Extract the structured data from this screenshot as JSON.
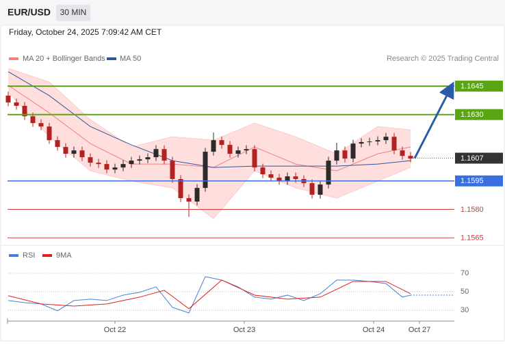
{
  "header": {
    "symbol": "EUR/USD",
    "interval": "30 MIN",
    "timestamp": "Friday, October 24, 2025 7:09:42 AM CET"
  },
  "time_axis": {
    "xlim": [
      0,
      54.33
    ],
    "xticks": [
      {
        "value": 13,
        "label": "Oct 22"
      },
      {
        "value": 28.75,
        "label": "Oct 23"
      },
      {
        "value": 44.5,
        "label": "Oct 24"
      },
      {
        "value": 50.08,
        "label": "Oct 27"
      }
    ]
  },
  "chart_data": [
    {
      "type": "candlestick",
      "credit": "Research © 2025 Trading Central",
      "ylim": [
        1.15625,
        1.1658
      ],
      "up_color": "#2b2b2b",
      "down_color": "#b22222",
      "candles": {
        "open": [
          1.164,
          1.16364,
          1.16346,
          1.16291,
          1.16255,
          1.16237,
          1.16165,
          1.16129,
          1.16093,
          1.16111,
          1.16075,
          1.16046,
          1.16039,
          1.1601,
          1.16021,
          1.16039,
          1.16057,
          1.16064,
          1.16075,
          1.16118,
          1.16057,
          1.1596,
          1.15859,
          1.15841,
          1.15913,
          1.16104,
          1.16165,
          1.1614,
          1.16093,
          1.16111,
          1.16118,
          1.16021,
          1.15985,
          1.15967,
          1.15949,
          1.15974,
          1.1596,
          1.15938,
          1.15877,
          1.15931,
          1.16057,
          1.16111,
          1.16068,
          1.16147,
          1.16155,
          1.16158,
          1.16165,
          1.16183,
          1.16111,
          1.16082
        ],
        "high": [
          1.1642,
          1.16384,
          1.16366,
          1.16311,
          1.16275,
          1.16257,
          1.16185,
          1.16149,
          1.16131,
          1.16131,
          1.16095,
          1.16066,
          1.16059,
          1.16041,
          1.16059,
          1.16077,
          1.16084,
          1.16095,
          1.16138,
          1.16138,
          1.16077,
          1.1598,
          1.15879,
          1.15933,
          1.16124,
          1.16205,
          1.16185,
          1.1616,
          1.16131,
          1.16138,
          1.16138,
          1.16041,
          1.16005,
          1.15987,
          1.15994,
          1.15994,
          1.1598,
          1.15958,
          1.15951,
          1.16077,
          1.16151,
          1.16131,
          1.16167,
          1.16175,
          1.16178,
          1.16185,
          1.16203,
          1.16203,
          1.16131,
          1.16102
        ],
        "low": [
          1.16344,
          1.16326,
          1.16271,
          1.16235,
          1.16217,
          1.16145,
          1.16109,
          1.16073,
          1.16073,
          1.16055,
          1.16026,
          1.16019,
          1.1599,
          1.1599,
          1.16001,
          1.16019,
          1.16037,
          1.16044,
          1.16055,
          1.16037,
          1.1594,
          1.15839,
          1.1576,
          1.15821,
          1.15893,
          1.16084,
          1.1612,
          1.16073,
          1.16073,
          1.16091,
          1.16001,
          1.15965,
          1.15947,
          1.15929,
          1.15929,
          1.1594,
          1.15918,
          1.15857,
          1.15857,
          1.15911,
          1.16037,
          1.16048,
          1.16048,
          1.16127,
          1.16135,
          1.16138,
          1.16145,
          1.16091,
          1.16062,
          1.16048
        ],
        "close": [
          1.16364,
          1.16346,
          1.16291,
          1.16255,
          1.16237,
          1.16165,
          1.16129,
          1.16093,
          1.16111,
          1.16075,
          1.16046,
          1.16039,
          1.1601,
          1.16021,
          1.16039,
          1.16057,
          1.16064,
          1.16075,
          1.16118,
          1.16057,
          1.1596,
          1.15859,
          1.15841,
          1.15913,
          1.16104,
          1.16165,
          1.1614,
          1.16093,
          1.16111,
          1.16118,
          1.16021,
          1.15985,
          1.15967,
          1.15949,
          1.15974,
          1.1596,
          1.15938,
          1.15877,
          1.15931,
          1.16057,
          1.16111,
          1.16068,
          1.16147,
          1.16155,
          1.16158,
          1.16165,
          1.16183,
          1.16111,
          1.16082,
          1.16068
        ]
      },
      "bands": {
        "name": "MA 20 + Bollinger Bands",
        "color": "#f08080",
        "fill": "#ffd6d6",
        "x": [
          0,
          5,
          10,
          15,
          20,
          25,
          30,
          35,
          40,
          45,
          49
        ],
        "upper": [
          1.16544,
          1.16472,
          1.16273,
          1.16129,
          1.16183,
          1.16165,
          1.16255,
          1.16183,
          1.16093,
          1.16237,
          1.16219
        ],
        "middle": [
          1.16454,
          1.16309,
          1.16147,
          1.16039,
          1.16039,
          1.16021,
          1.16129,
          1.16039,
          1.16003,
          1.16093,
          1.16129
        ],
        "lower": [
          1.16418,
          1.16183,
          1.16003,
          1.15949,
          1.15913,
          1.15751,
          1.16003,
          1.15913,
          1.15859,
          1.15949,
          1.16021
        ]
      },
      "series": [
        {
          "name": "MA 50",
          "color": "#2f5597",
          "x": [
            0,
            5,
            10,
            15,
            20,
            25,
            30,
            35,
            40,
            45,
            49
          ],
          "values": [
            1.16526,
            1.164,
            1.16237,
            1.1614,
            1.16057,
            1.16021,
            1.16028,
            1.16028,
            1.16028,
            1.16039,
            1.16057
          ]
        }
      ],
      "levels": [
        {
          "value": 1.1645,
          "color": "#5aa513"
        },
        {
          "value": 1.163,
          "label": "1.1630",
          "color": "#5aa513"
        },
        {
          "value": 1.1607,
          "color": "#333333"
        },
        {
          "value": 1.1595,
          "color": "#3a6fe0"
        },
        {
          "value": 1.158,
          "label": "1.1580",
          "color": "#d63a3a"
        },
        {
          "value": 1.1565,
          "color": "#d63a3a"
        }
      ]
    },
    {
      "type": "line",
      "ylim": [
        18.1,
        81.1
      ],
      "yticks": [
        30,
        50,
        70
      ],
      "series": [
        {
          "name": "RSI",
          "color": "#4a7fd6",
          "x": [
            0,
            2,
            4,
            6,
            8,
            10,
            12,
            14,
            16,
            18,
            20,
            22,
            24,
            26,
            28,
            30,
            32,
            34,
            36,
            38,
            40,
            42,
            44,
            46,
            48,
            49
          ],
          "values": [
            40.4,
            38.1,
            36.7,
            29.3,
            40.4,
            41.9,
            40.4,
            46.3,
            49.3,
            55.2,
            33.0,
            27.0,
            66.3,
            62.6,
            55.2,
            44.1,
            41.9,
            46.3,
            40.4,
            47.8,
            62.6,
            62.6,
            61.1,
            58.9,
            44.1,
            46.3
          ]
        },
        {
          "name": "9MA",
          "color": "#e02020",
          "x": [
            0,
            4,
            8,
            12,
            16,
            19,
            22,
            26,
            30,
            34,
            38,
            42,
            46,
            49
          ],
          "values": [
            45.6,
            36.7,
            34.4,
            36.7,
            44.1,
            51.5,
            31.5,
            62.6,
            46.3,
            41.9,
            44.1,
            61.1,
            61.1,
            47.8
          ]
        }
      ]
    }
  ]
}
